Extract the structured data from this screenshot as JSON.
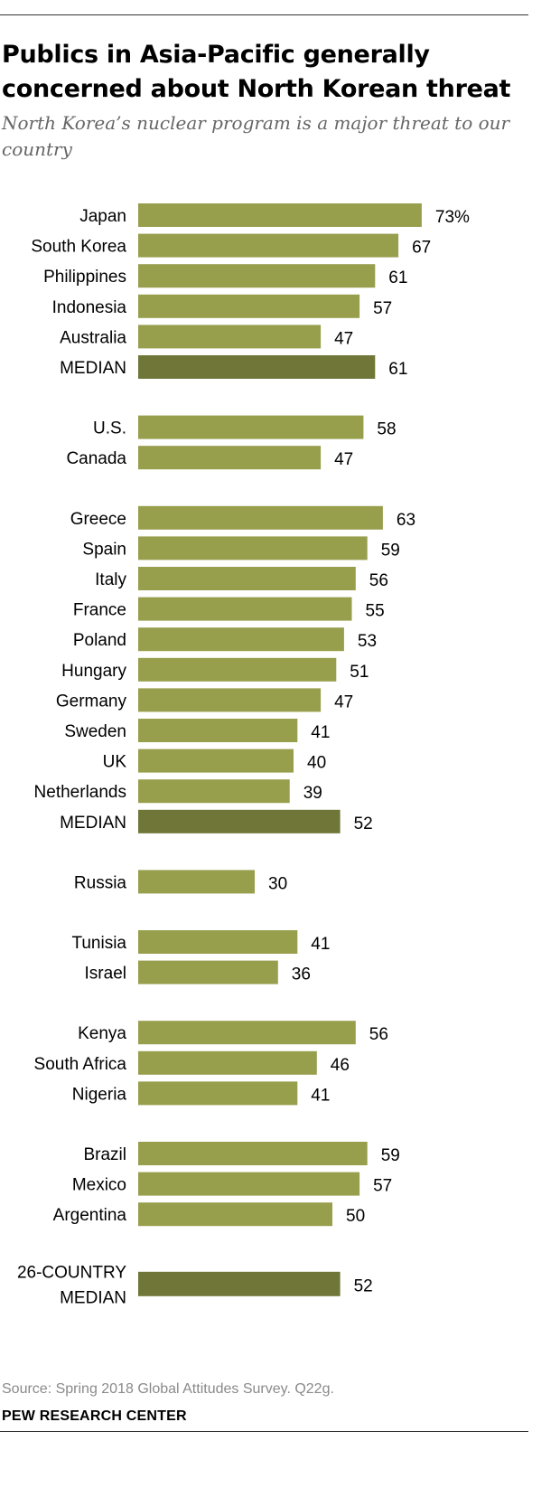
{
  "header": {
    "title": "Publics in Asia-Pacific generally concerned about North Korean threat",
    "subtitle": "North Korea’s nuclear program is a major threat to our country"
  },
  "footer": {
    "source": "Source: Spring 2018 Global Attitudes Survey. Q22g.",
    "brand": "PEW RESEARCH CENTER"
  },
  "colors": {
    "bar": "#979e4c",
    "median_bar": "#6f7637",
    "label_text": "#000000",
    "value_text": "#000000"
  },
  "chart_data": {
    "type": "bar",
    "orientation": "horizontal",
    "title": "Publics in Asia-Pacific generally concerned about North Korean threat",
    "subtitle": "North Korea’s nuclear program is a major threat to our country",
    "xlabel": "",
    "ylabel": "",
    "xlim": [
      0,
      100
    ],
    "unit_suffix_first": "%",
    "groups": [
      {
        "rows": [
          {
            "label": "Japan",
            "value": 73,
            "display": "73%"
          },
          {
            "label": "South Korea",
            "value": 67,
            "display": "67"
          },
          {
            "label": "Philippines",
            "value": 61,
            "display": "61"
          },
          {
            "label": "Indonesia",
            "value": 57,
            "display": "57"
          },
          {
            "label": "Australia",
            "value": 47,
            "display": "47"
          },
          {
            "label": "MEDIAN",
            "value": 61,
            "display": "61",
            "median": true
          }
        ]
      },
      {
        "rows": [
          {
            "label": "U.S.",
            "value": 58,
            "display": "58"
          },
          {
            "label": "Canada",
            "value": 47,
            "display": "47"
          }
        ]
      },
      {
        "rows": [
          {
            "label": "Greece",
            "value": 63,
            "display": "63"
          },
          {
            "label": "Spain",
            "value": 59,
            "display": "59"
          },
          {
            "label": "Italy",
            "value": 56,
            "display": "56"
          },
          {
            "label": "France",
            "value": 55,
            "display": "55"
          },
          {
            "label": "Poland",
            "value": 53,
            "display": "53"
          },
          {
            "label": "Hungary",
            "value": 51,
            "display": "51"
          },
          {
            "label": "Germany",
            "value": 47,
            "display": "47"
          },
          {
            "label": "Sweden",
            "value": 41,
            "display": "41"
          },
          {
            "label": "UK",
            "value": 40,
            "display": "40"
          },
          {
            "label": "Netherlands",
            "value": 39,
            "display": "39"
          },
          {
            "label": "MEDIAN",
            "value": 52,
            "display": "52",
            "median": true
          }
        ]
      },
      {
        "rows": [
          {
            "label": "Russia",
            "value": 30,
            "display": "30"
          }
        ]
      },
      {
        "rows": [
          {
            "label": "Tunisia",
            "value": 41,
            "display": "41"
          },
          {
            "label": "Israel",
            "value": 36,
            "display": "36"
          }
        ]
      },
      {
        "rows": [
          {
            "label": "Kenya",
            "value": 56,
            "display": "56"
          },
          {
            "label": "South Africa",
            "value": 46,
            "display": "46"
          },
          {
            "label": "Nigeria",
            "value": 41,
            "display": "41"
          }
        ]
      },
      {
        "rows": [
          {
            "label": "Brazil",
            "value": 59,
            "display": "59"
          },
          {
            "label": "Mexico",
            "value": 57,
            "display": "57"
          },
          {
            "label": "Argentina",
            "value": 50,
            "display": "50"
          }
        ]
      },
      {
        "rows": [
          {
            "label": "26-COUNTRY MEDIAN",
            "label_lines": [
              "26-COUNTRY",
              "MEDIAN"
            ],
            "value": 52,
            "display": "52",
            "median": true
          }
        ]
      }
    ]
  }
}
